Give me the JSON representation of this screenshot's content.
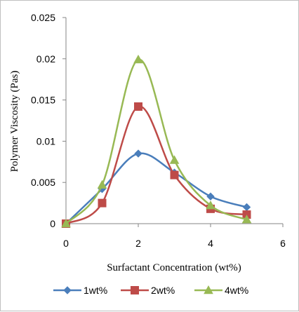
{
  "chart_data": {
    "type": "line",
    "title": "",
    "xlabel": "Surfactant Concentration (wt%)",
    "ylabel": "Polymer Viscosity (Pas)",
    "xlim": [
      0,
      6
    ],
    "ylim": [
      0,
      0.025
    ],
    "xticks": [
      0,
      2,
      4,
      6
    ],
    "xtick_labels": [
      "0",
      "2",
      "4",
      "6"
    ],
    "yticks": [
      0,
      0.005,
      0.01,
      0.015,
      0.02,
      0.025
    ],
    "ytick_labels": [
      "0",
      "0.005",
      "0.01",
      "0.015",
      "0.02",
      "0.025"
    ],
    "grid": false,
    "smooth": true,
    "legend_position": "bottom",
    "series": [
      {
        "name": "1wt%",
        "color": "#4a7ebb",
        "marker": "diamond",
        "x": [
          0,
          1,
          2,
          3,
          4,
          5
        ],
        "y": [
          0,
          0.0042,
          0.0085,
          0.0062,
          0.0033,
          0.002
        ]
      },
      {
        "name": "2wt%",
        "color": "#be4b48",
        "marker": "square",
        "x": [
          0,
          1,
          2,
          3,
          4,
          5
        ],
        "y": [
          0,
          0.0025,
          0.0142,
          0.0059,
          0.0018,
          0.0011
        ]
      },
      {
        "name": "4wt%",
        "color": "#98b954",
        "marker": "triangle",
        "x": [
          0,
          1,
          2,
          3,
          4,
          5
        ],
        "y": [
          0,
          0.0047,
          0.0199,
          0.0077,
          0.0022,
          0.0005
        ]
      }
    ]
  }
}
